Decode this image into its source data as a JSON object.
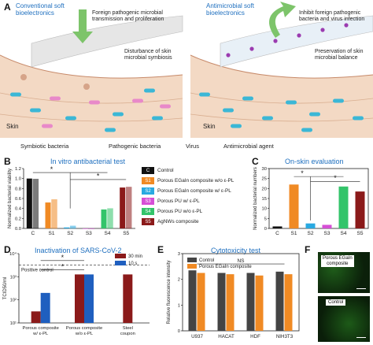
{
  "panel_A": {
    "letter": "A",
    "left_title": [
      "Conventional soft",
      "bioelectronics"
    ],
    "left_annot1": [
      "Foreign pathogenic microbial",
      "transmission and proliferation"
    ],
    "left_annot2": [
      "Disturbance of skin",
      "microbial symbiosis"
    ],
    "left_skin": "Skin",
    "right_title": [
      "Antimicrobial soft",
      "bioelectronics"
    ],
    "right_annot1": [
      "Inhibit foreign pathogenic",
      "bacteria and virus infection"
    ],
    "right_annot2": [
      "Preservation of skin",
      "microbial balance"
    ],
    "right_skin": "Skin",
    "legend": [
      "Symbiotic bacteria",
      "Pathogenic bacteria",
      "Virus",
      "Antimicrobial agent"
    ]
  },
  "panel_B": {
    "letter": "B",
    "title": "In vitro antibacterial test",
    "star": "*"
  },
  "panel_C": {
    "letter": "C",
    "title": "On-skin evaluation",
    "star": "*"
  },
  "panel_D": {
    "letter": "D",
    "title": "Inactivation of SARS-CoV-2",
    "positive_control": "Positive control",
    "star": "*"
  },
  "panel_E": {
    "letter": "E",
    "title": "Cytotoxicity test",
    "ns": "NS"
  },
  "panel_F": {
    "letter": "F",
    "top_label": [
      "Porous EGaIn",
      "composite"
    ],
    "bottom_label": "Control"
  },
  "legend_BC": [
    {
      "code": "C",
      "label": "Control",
      "color": "#111111"
    },
    {
      "code": "S1",
      "label": "Porous EGaIn composite w/o ε-PL",
      "color": "#f08a24"
    },
    {
      "code": "S2",
      "label": "Porous EGaIn composite w/ ε-PL",
      "color": "#29a9e1"
    },
    {
      "code": "S3",
      "label": "Porous PU w/ ε-PL",
      "color": "#d64fd6"
    },
    {
      "code": "S4",
      "label": "Porous PU w/o ε-PL",
      "color": "#33c46a"
    },
    {
      "code": "S5",
      "label": "AgNWs composite",
      "color": "#8b1a1a"
    }
  ],
  "chart_data": [
    {
      "panel": "B",
      "type": "bar",
      "title": "In vitro antibacterial test",
      "ylabel": "Normalized bacterial viability",
      "categories": [
        "C",
        "S1",
        "S2",
        "S3",
        "S4",
        "S5"
      ],
      "series": [
        {
          "name": "solid",
          "values": [
            1.0,
            0.52,
            0.02,
            0.0,
            0.38,
            0.82
          ]
        },
        {
          "name": "hatched",
          "values": [
            0.99,
            0.58,
            0.05,
            0.0,
            0.4,
            0.83
          ]
        }
      ],
      "colors": [
        "#111111",
        "#f08a24",
        "#29a9e1",
        "#d64fd6",
        "#33c46a",
        "#8b1a1a"
      ],
      "ylim": [
        0,
        1.2
      ],
      "yticks": [
        "0.0",
        "0.2",
        "0.4",
        "0.6",
        "0.8",
        "1.0",
        "1.2"
      ]
    },
    {
      "panel": "C",
      "type": "bar",
      "title": "On-skin evaluation",
      "ylabel": "Normalized bacterial numbers",
      "categories": [
        "C",
        "S1",
        "S2",
        "S3",
        "S4",
        "S5"
      ],
      "values": [
        1,
        22,
        2.5,
        1.8,
        21,
        18.5
      ],
      "colors": [
        "#111111",
        "#f08a24",
        "#29a9e1",
        "#d64fd6",
        "#33c46a",
        "#8b1a1a"
      ],
      "ylim": [
        0,
        30
      ],
      "yticks": [
        "0",
        "5",
        "10",
        "15",
        "20",
        "25",
        "30"
      ]
    },
    {
      "panel": "D",
      "type": "bar",
      "title": "Inactivation of SARS-CoV-2",
      "ylabel": "TCID50/ml",
      "categories": [
        [
          "Porous composite",
          "w/ ε-PL"
        ],
        [
          "Porous composite",
          "w/o ε-PL"
        ],
        [
          "Steel",
          "coupon"
        ]
      ],
      "series": [
        {
          "name": "30 min",
          "values": [
            1.5,
            3.1,
            3.1
          ],
          "color": "#8b1a1a"
        },
        {
          "name": "10 s",
          "values": [
            2.3,
            3.1,
            null
          ],
          "color": "#1f5fbf"
        }
      ],
      "positive_control": 3.5,
      "ylim": [
        1,
        4
      ],
      "yticks": [
        "10¹",
        "10²",
        "10³",
        "10⁴"
      ]
    },
    {
      "panel": "E",
      "type": "bar",
      "title": "Cytotoxicity test",
      "ylabel": "Relative fluorescence intensity",
      "categories": [
        "U937",
        "HACAT",
        "HDF",
        "NIH3T3"
      ],
      "series": [
        {
          "name": "Control",
          "values": [
            2.35,
            2.25,
            2.25,
            2.3
          ],
          "color": "#444444"
        },
        {
          "name": "Porous EGaIn composite",
          "values": [
            2.25,
            2.2,
            2.15,
            2.2
          ],
          "color": "#f08a24"
        }
      ],
      "ylim": [
        0,
        3
      ],
      "yticks": [
        "0",
        "1",
        "2",
        "3"
      ]
    }
  ]
}
